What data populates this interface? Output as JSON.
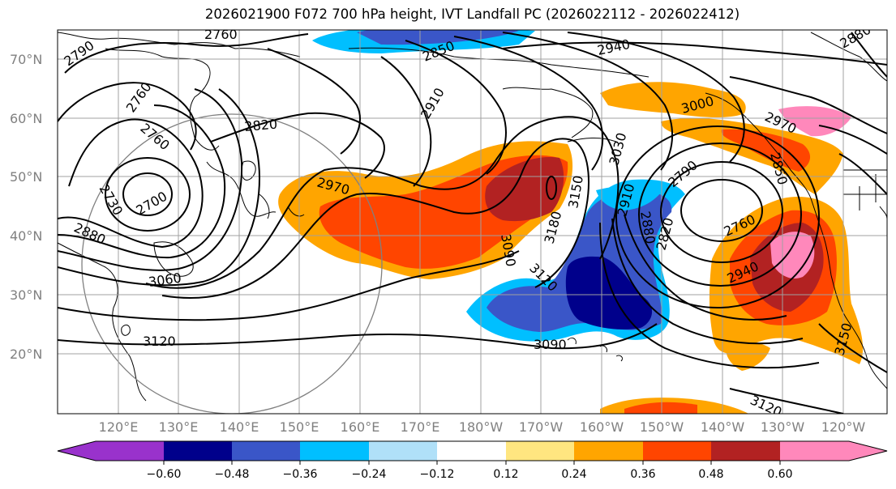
{
  "title": "2026021900 F072 700 hPa height, IVT Landfall PC (2026022112 - 2026022412)",
  "map": {
    "lat_labels": [
      "70°N",
      "60°N",
      "50°N",
      "40°N",
      "30°N",
      "20°N"
    ],
    "lon_labels": [
      "120°E",
      "130°E",
      "140°E",
      "150°E",
      "160°E",
      "170°E",
      "180°W",
      "170°W",
      "160°W",
      "150°W",
      "140°W",
      "130°W",
      "120°W"
    ],
    "contour_labels": [
      "2790",
      "2760",
      "2850",
      "2940",
      "2880",
      "2760",
      "2910",
      "3000",
      "2820",
      "2970",
      "2760",
      "2730",
      "2700",
      "2970",
      "3030",
      "3150",
      "2910",
      "2790",
      "2850",
      "2880",
      "3180",
      "2820",
      "2760",
      "3090",
      "2880",
      "2940",
      "3060",
      "3120",
      "3120",
      "3090",
      "3150",
      "3120"
    ],
    "colors": {
      "land_outline": "#000000",
      "grid": "#a0a0a0",
      "labels": "#808080"
    }
  },
  "colorbar": {
    "ticks": [
      "−0.60",
      "−0.48",
      "−0.36",
      "−0.24",
      "−0.12",
      "0.12",
      "0.24",
      "0.36",
      "0.48",
      "0.60"
    ],
    "colors": [
      "#9932cc",
      "#00008b",
      "#3a56c8",
      "#00bfff",
      "#b0e0f8",
      "#ffffff",
      "#ffe680",
      "#ffa500",
      "#ff4500",
      "#b22222",
      "#ff88bb"
    ]
  }
}
